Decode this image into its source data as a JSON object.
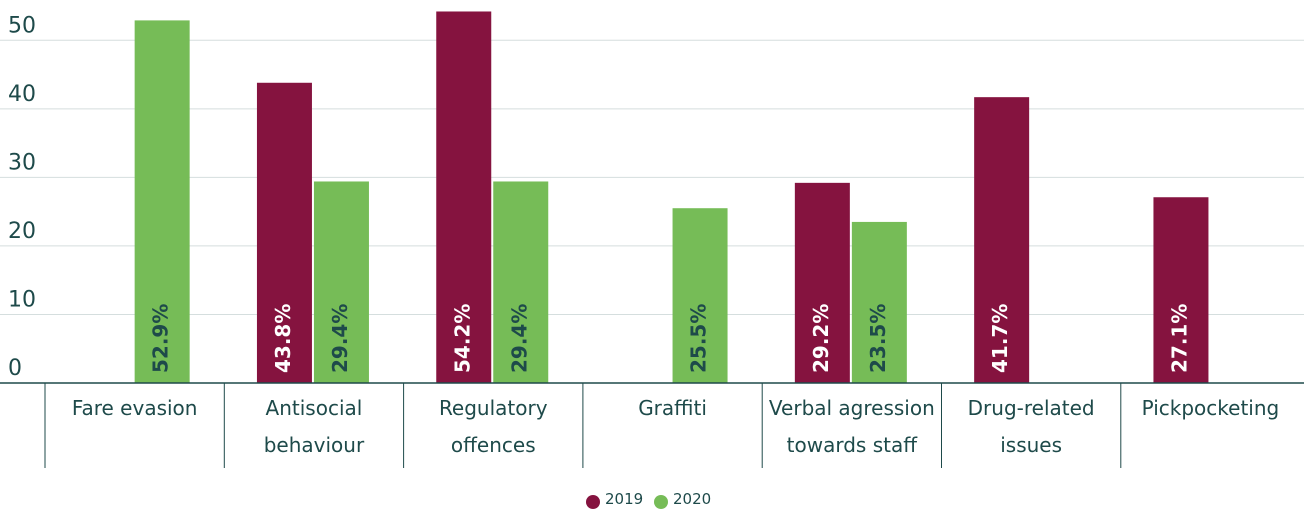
{
  "chart_data": {
    "type": "bar",
    "categories": [
      "Fare evasion",
      "Antisocial behaviour",
      "Regulatory offences",
      "Graffiti",
      "Verbal agression towards staff",
      "Drug-related issues",
      "Pickpocketing"
    ],
    "series": [
      {
        "name": "2019",
        "color": "#85133f",
        "values": [
          null,
          43.8,
          54.2,
          null,
          29.2,
          41.7,
          27.1
        ],
        "value_labels": [
          null,
          "43.8%",
          "54.2%",
          null,
          "29.2%",
          "41.7%",
          "27.1%"
        ]
      },
      {
        "name": "2020",
        "color": "#76bc57",
        "values": [
          52.9,
          29.4,
          29.4,
          25.5,
          23.5,
          null,
          null
        ],
        "value_labels": [
          "52.9%",
          "29.4%",
          "29.4%",
          "25.5%",
          "23.5%",
          null,
          null
        ]
      }
    ],
    "ylim": [
      0,
      55
    ],
    "yticks": [
      0,
      10,
      20,
      30,
      40,
      50
    ],
    "grid": true,
    "legend": "bottom"
  }
}
